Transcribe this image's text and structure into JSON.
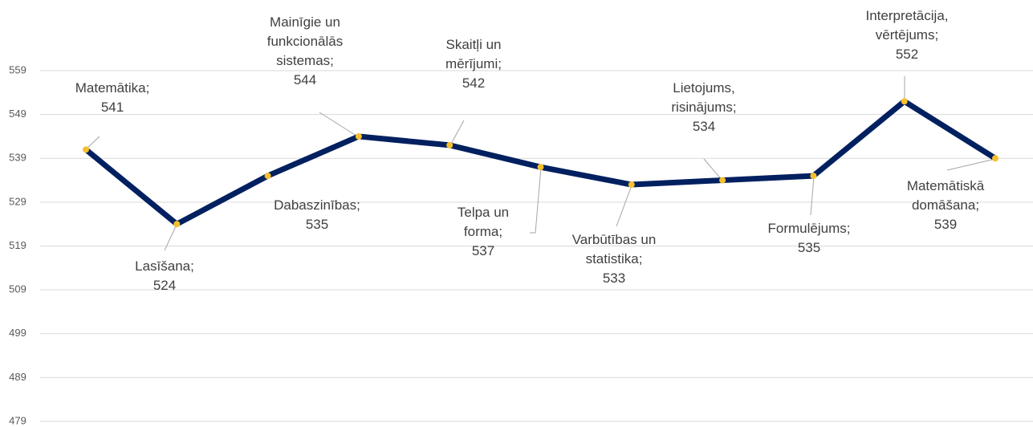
{
  "chart_data": {
    "type": "line",
    "categories": [
      "Matemātika;",
      "Lasīšana;",
      "Dabaszinības;",
      "Mainīgie un funkcionālās sistemas;",
      "Skaitļi un mērījumi;",
      "Telpa un forma;",
      "Varbūtības un statistika;",
      "Lietojums, risinājums;",
      "Formulējums;",
      "Interpretācija, vērtējums;",
      "Matemātiskā domāšana;"
    ],
    "series": [
      {
        "color": "#002060",
        "values": [
          541,
          524,
          535,
          544,
          542,
          537,
          533,
          534,
          535,
          552,
          539
        ]
      }
    ],
    "ylim": [
      479,
      559
    ],
    "yticks": [
      479,
      489,
      499,
      509,
      519,
      529,
      539,
      549,
      559
    ],
    "grid": true
  }
}
